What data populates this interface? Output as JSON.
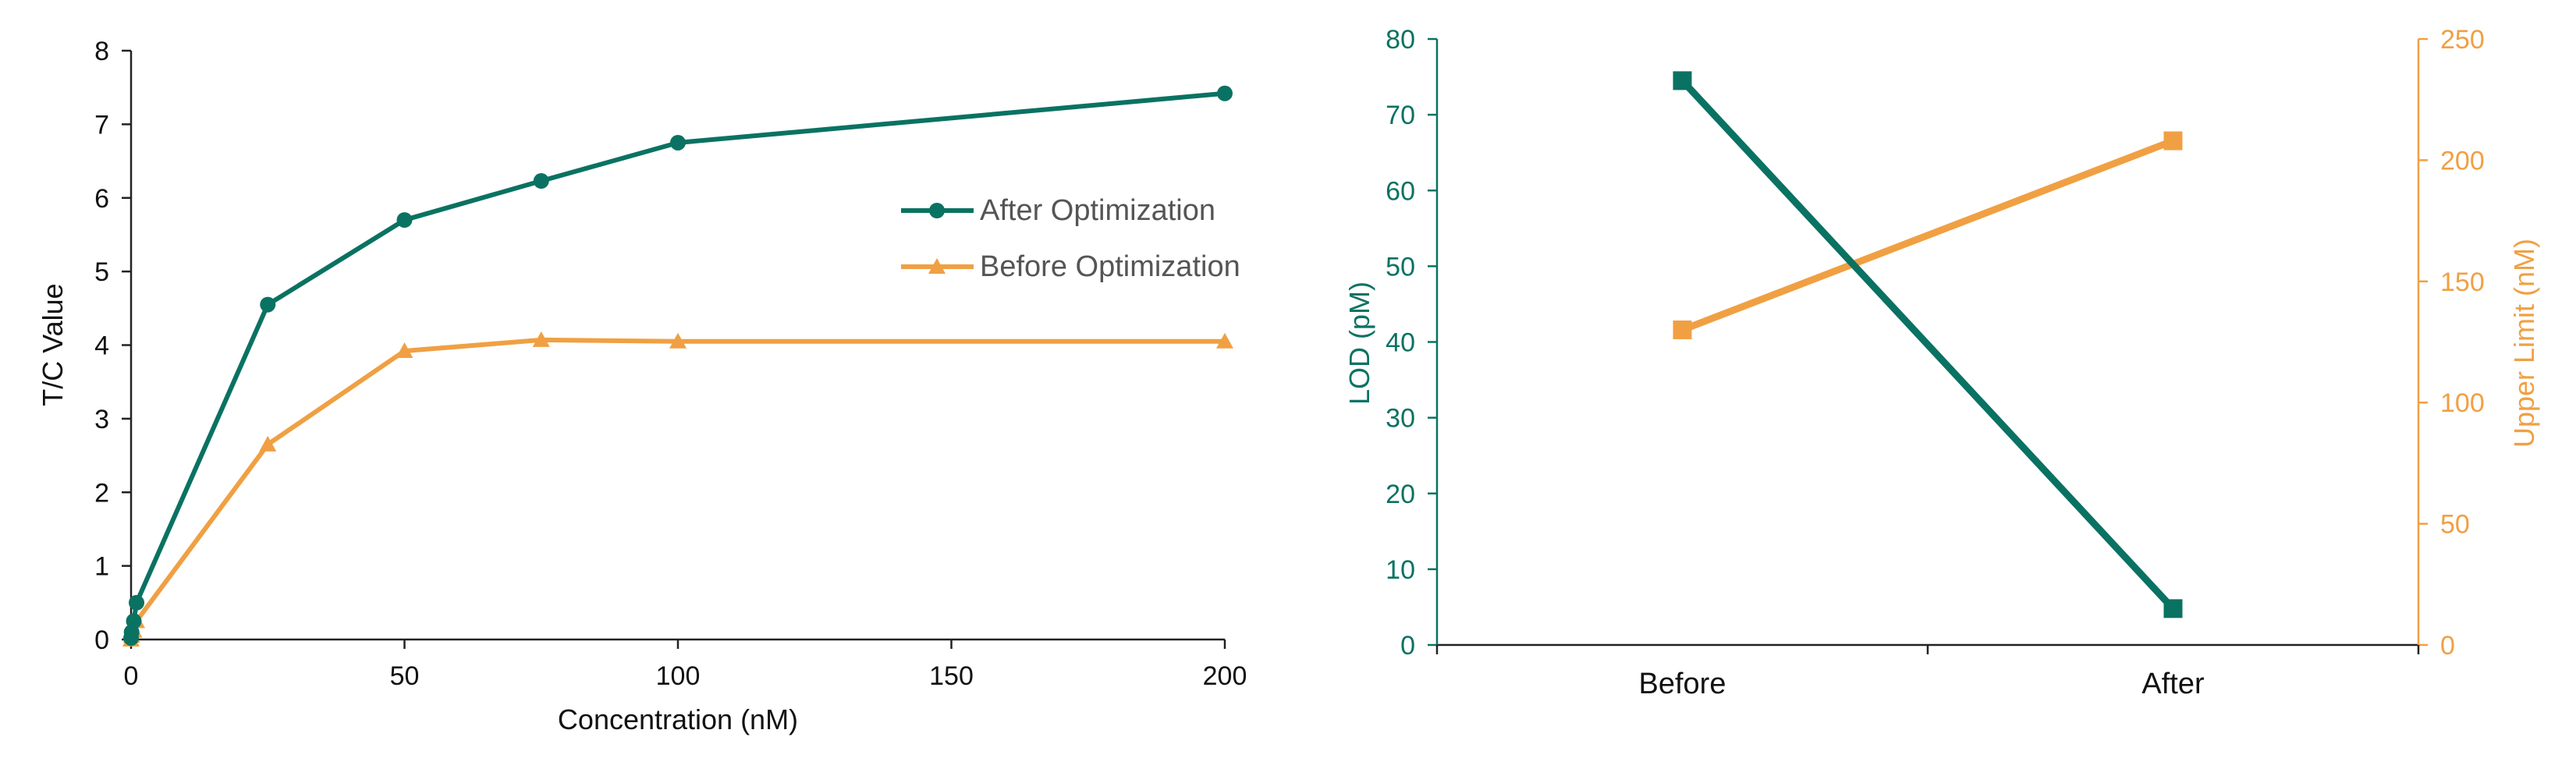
{
  "colors": {
    "after": "#0a7262",
    "before": "#f0a043",
    "axis": "#222222",
    "text": "#111111",
    "legend_text": "#555555"
  },
  "chart_data": [
    {
      "type": "line",
      "xlabel": "Concentration (nM)",
      "ylabel": "T/C Value",
      "xlim": [
        0,
        200
      ],
      "ylim": [
        0,
        8
      ],
      "x_ticks": [
        0,
        50,
        100,
        150,
        200
      ],
      "y_ticks": [
        0,
        1,
        2,
        3,
        4,
        5,
        6,
        7,
        8
      ],
      "legend_position": "right",
      "series": [
        {
          "name": "After Optimization",
          "marker": "circle",
          "color": "#0a7262",
          "x": [
            0,
            0.1,
            0.5,
            1,
            25,
            50,
            75,
            100,
            200
          ],
          "y": [
            0.02,
            0.1,
            0.25,
            0.5,
            4.55,
            5.7,
            6.23,
            6.75,
            7.42
          ]
        },
        {
          "name": "Before Optimization",
          "marker": "triangle",
          "color": "#f0a043",
          "x": [
            0,
            0.1,
            0.5,
            1,
            25,
            50,
            75,
            100,
            200
          ],
          "y": [
            0.0,
            0.05,
            0.12,
            0.25,
            2.65,
            3.92,
            4.07,
            4.05,
            4.05
          ]
        }
      ]
    },
    {
      "type": "line",
      "categories": [
        "Before",
        "After"
      ],
      "ylabel_left": "LOD (pM)",
      "ylabel_right": "Upper Limit (nM)",
      "ylim_left": [
        0,
        80
      ],
      "ylim_right": [
        0,
        250
      ],
      "y_ticks_left": [
        0,
        10,
        20,
        30,
        40,
        50,
        60,
        70,
        80
      ],
      "y_ticks_right": [
        0,
        50,
        100,
        150,
        200,
        250
      ],
      "series": [
        {
          "name": "LOD (pM)",
          "axis": "left",
          "marker": "square",
          "color": "#0a7262",
          "values": [
            74.5,
            4.8
          ]
        },
        {
          "name": "Upper Limit (nM)",
          "axis": "right",
          "marker": "square",
          "color": "#f0a043",
          "values": [
            130,
            208
          ]
        }
      ]
    }
  ]
}
